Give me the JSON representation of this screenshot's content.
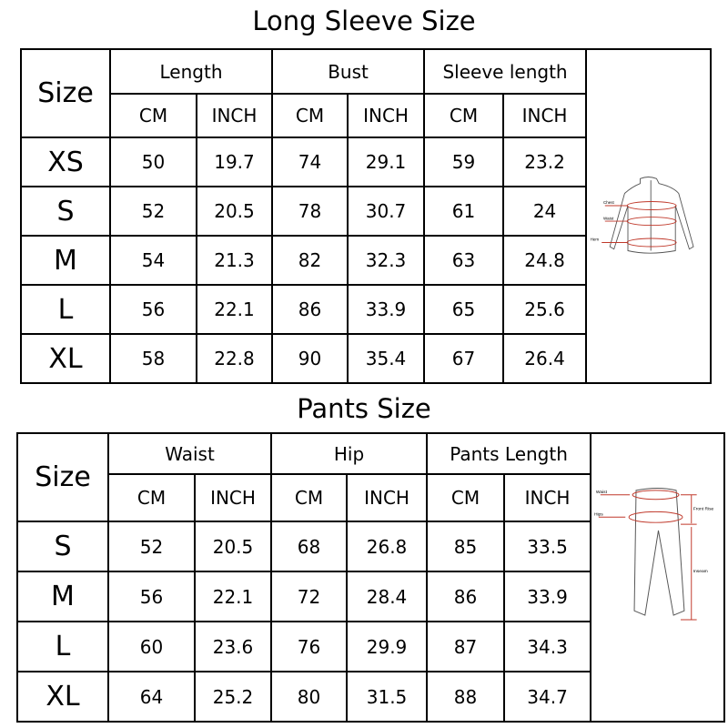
{
  "long_sleeve": {
    "title": "Long Sleeve Size",
    "size_header": "Size",
    "groups": [
      "Length",
      "Bust",
      "Sleeve length"
    ],
    "units": [
      "CM",
      "INCH",
      "CM",
      "INCH",
      "CM",
      "INCH"
    ],
    "rows": [
      {
        "size": "XS",
        "values": [
          "50",
          "19.7",
          "74",
          "29.1",
          "59",
          "23.2"
        ]
      },
      {
        "size": "S",
        "values": [
          "52",
          "20.5",
          "78",
          "30.7",
          "61",
          "24"
        ]
      },
      {
        "size": "M",
        "values": [
          "54",
          "21.3",
          "82",
          "32.3",
          "63",
          "24.8"
        ]
      },
      {
        "size": "L",
        "values": [
          "56",
          "22.1",
          "86",
          "33.9",
          "65",
          "25.6"
        ]
      },
      {
        "size": "XL",
        "values": [
          "58",
          "22.8",
          "90",
          "35.4",
          "67",
          "26.4"
        ]
      }
    ],
    "diagram_labels": [
      "Chest",
      "Waist",
      "Hem"
    ]
  },
  "pants": {
    "title": "Pants Size",
    "size_header": "Size",
    "groups": [
      "Waist",
      "Hip",
      "Pants Length"
    ],
    "units": [
      "CM",
      "INCH",
      "CM",
      "INCH",
      "CM",
      "INCH"
    ],
    "rows": [
      {
        "size": "S",
        "values": [
          "52",
          "20.5",
          "68",
          "26.8",
          "85",
          "33.5"
        ]
      },
      {
        "size": "M",
        "values": [
          "56",
          "22.1",
          "72",
          "28.4",
          "86",
          "33.9"
        ]
      },
      {
        "size": "L",
        "values": [
          "60",
          "23.6",
          "76",
          "29.9",
          "87",
          "34.3"
        ]
      },
      {
        "size": "XL",
        "values": [
          "64",
          "25.2",
          "80",
          "31.5",
          "88",
          "34.7"
        ]
      }
    ],
    "diagram_labels": [
      "Waist",
      "Hips",
      "Front Rise",
      "Inseam"
    ]
  },
  "colors": {
    "measure_line": "#c0392b",
    "border": "#000000"
  }
}
